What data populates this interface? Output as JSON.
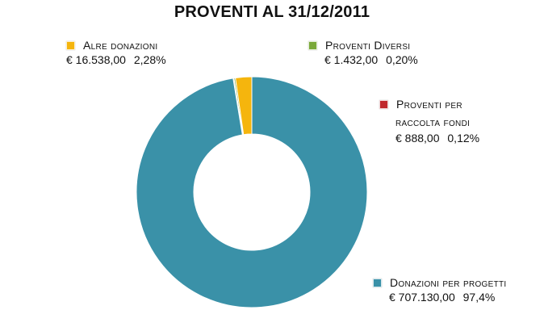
{
  "chart_data": {
    "type": "pie",
    "style": "donut",
    "title": "PROVENTI AL 31/12/2011",
    "slices": [
      {
        "label": "Donazioni per progetti",
        "value": 707130.0,
        "value_text": "€ 707.130,00",
        "percent": 97.4,
        "percent_text": "97,4%",
        "color": "#3a91a8"
      },
      {
        "label": "Alre donazioni",
        "value": 16538.0,
        "value_text": "€ 16.538,00",
        "percent": 2.28,
        "percent_text": "2,28%",
        "color": "#f5b50d"
      },
      {
        "label": "Proventi Diversi",
        "value": 1432.0,
        "value_text": "€ 1.432,00",
        "percent": 0.2,
        "percent_text": "0,20%",
        "color": "#7aa83a"
      },
      {
        "label_line1": "Proventi per",
        "label_line2": "raccolta fondi",
        "label": "Proventi per raccolta fondi",
        "value": 888.0,
        "value_text": "€ 888,00",
        "percent": 0.12,
        "percent_text": "0,12%",
        "color": "#c0282d"
      }
    ]
  }
}
